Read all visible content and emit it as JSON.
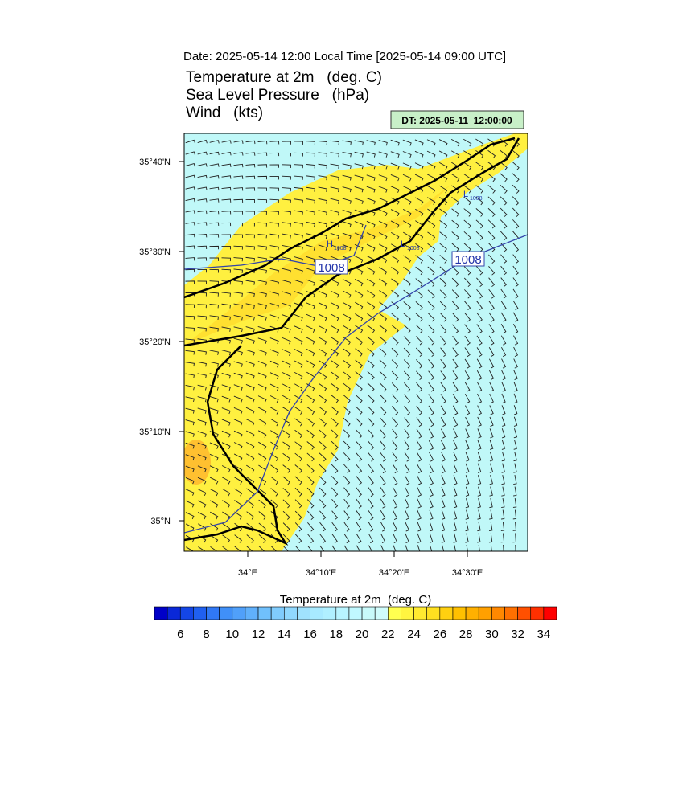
{
  "header": {
    "date": "Date: 2025-05-14  12:00 Local Time [2025-05-14  09:00 UTC]",
    "fields": [
      "Temperature at 2m   (deg. C)",
      "Sea Level Pressure   (hPa)",
      "Wind   (kts)"
    ],
    "dt": "DT: 2025-05-11_12:00:00"
  },
  "map": {
    "lat_labels": [
      "35°40'N",
      "35°30'N",
      "35°20'N",
      "35°10'N",
      "35°N"
    ],
    "lon_labels": [
      "34°E",
      "34°10'E",
      "34°20'E",
      "34°30'E"
    ],
    "isobar_labels": [
      "1008",
      "1008"
    ],
    "pressure_centers": [
      {
        "symbol": "H",
        "value": "1008"
      },
      {
        "symbol": "L",
        "value": "1008"
      },
      {
        "symbol": "L",
        "value": "1008"
      }
    ]
  },
  "colorbar": {
    "title": "Temperature at 2m  (deg. C)",
    "labels": [
      6,
      8,
      10,
      12,
      14,
      16,
      18,
      20,
      22,
      24,
      26,
      28,
      30,
      32,
      34
    ],
    "lim": [
      4,
      35
    ],
    "colors": [
      "#0000c8",
      "#0a28d8",
      "#1446e6",
      "#2060f0",
      "#3078f5",
      "#4090f8",
      "#50a0fa",
      "#60b0fb",
      "#70c0fc",
      "#80ccfd",
      "#90d8fe",
      "#a0e2fe",
      "#a8eaff",
      "#b0f0ff",
      "#b8f4ff",
      "#c0f8ff",
      "#c8fafa",
      "#d0fcfc",
      "#ffff50",
      "#fff540",
      "#ffea30",
      "#ffe020",
      "#ffd010",
      "#ffc000",
      "#ffb000",
      "#ffa000",
      "#ff8800",
      "#ff7000",
      "#ff5000",
      "#ff3000",
      "#ff0000"
    ]
  }
}
